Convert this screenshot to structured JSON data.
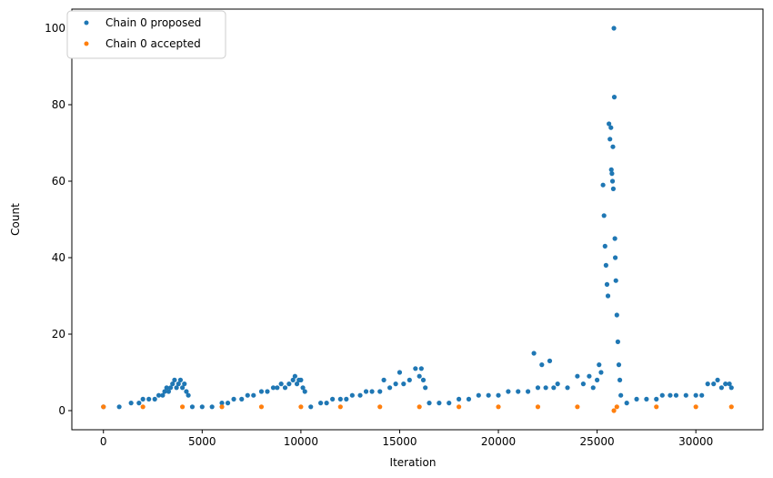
{
  "chart_data": {
    "type": "scatter",
    "title": "",
    "xlabel": "Iteration",
    "ylabel": "Count",
    "xlim": [
      -1600,
      33400
    ],
    "ylim": [
      -5,
      105
    ],
    "xticks": [
      0,
      5000,
      10000,
      15000,
      20000,
      25000,
      30000
    ],
    "xtick_labels": [
      "0",
      "5000",
      "10000",
      "15000",
      "20000",
      "25000",
      "30000"
    ],
    "yticks": [
      0,
      20,
      40,
      60,
      80,
      100
    ],
    "ytick_labels": [
      "0",
      "20",
      "40",
      "60",
      "80",
      "100"
    ],
    "grid": false,
    "legend_position": "upper-left",
    "series": [
      {
        "name": "Chain 0 proposed",
        "color": "#1f77b4",
        "points": [
          [
            0,
            1
          ],
          [
            800,
            1
          ],
          [
            1400,
            2
          ],
          [
            1800,
            2
          ],
          [
            2000,
            3
          ],
          [
            2300,
            3
          ],
          [
            2600,
            3
          ],
          [
            2800,
            4
          ],
          [
            3000,
            4
          ],
          [
            3100,
            5
          ],
          [
            3200,
            6
          ],
          [
            3300,
            5
          ],
          [
            3400,
            6
          ],
          [
            3500,
            7
          ],
          [
            3600,
            8
          ],
          [
            3700,
            6
          ],
          [
            3800,
            7
          ],
          [
            3900,
            8
          ],
          [
            4000,
            6
          ],
          [
            4100,
            7
          ],
          [
            4200,
            5
          ],
          [
            4300,
            4
          ],
          [
            4500,
            1
          ],
          [
            5000,
            1
          ],
          [
            5500,
            1
          ],
          [
            6000,
            2
          ],
          [
            6300,
            2
          ],
          [
            6600,
            3
          ],
          [
            7000,
            3
          ],
          [
            7300,
            4
          ],
          [
            7600,
            4
          ],
          [
            8000,
            5
          ],
          [
            8300,
            5
          ],
          [
            8600,
            6
          ],
          [
            8800,
            6
          ],
          [
            9000,
            7
          ],
          [
            9200,
            6
          ],
          [
            9400,
            7
          ],
          [
            9600,
            8
          ],
          [
            9700,
            9
          ],
          [
            9800,
            7
          ],
          [
            9900,
            8
          ],
          [
            10000,
            8
          ],
          [
            10100,
            6
          ],
          [
            10200,
            5
          ],
          [
            10500,
            1
          ],
          [
            11000,
            2
          ],
          [
            11300,
            2
          ],
          [
            11600,
            3
          ],
          [
            12000,
            3
          ],
          [
            12300,
            3
          ],
          [
            12600,
            4
          ],
          [
            13000,
            4
          ],
          [
            13300,
            5
          ],
          [
            13600,
            5
          ],
          [
            14000,
            5
          ],
          [
            14200,
            8
          ],
          [
            14500,
            6
          ],
          [
            14800,
            7
          ],
          [
            15000,
            10
          ],
          [
            15200,
            7
          ],
          [
            15500,
            8
          ],
          [
            15800,
            11
          ],
          [
            16000,
            9
          ],
          [
            16100,
            11
          ],
          [
            16200,
            8
          ],
          [
            16300,
            6
          ],
          [
            16500,
            2
          ],
          [
            17000,
            2
          ],
          [
            17500,
            2
          ],
          [
            18000,
            3
          ],
          [
            18500,
            3
          ],
          [
            19000,
            4
          ],
          [
            19500,
            4
          ],
          [
            20000,
            4
          ],
          [
            20500,
            5
          ],
          [
            21000,
            5
          ],
          [
            21500,
            5
          ],
          [
            21800,
            15
          ],
          [
            22000,
            6
          ],
          [
            22200,
            12
          ],
          [
            22400,
            6
          ],
          [
            22600,
            13
          ],
          [
            22800,
            6
          ],
          [
            23000,
            7
          ],
          [
            23500,
            6
          ],
          [
            24000,
            9
          ],
          [
            24300,
            7
          ],
          [
            24600,
            9
          ],
          [
            24800,
            6
          ],
          [
            25000,
            8
          ],
          [
            25100,
            12
          ],
          [
            25200,
            10
          ],
          [
            25300,
            59
          ],
          [
            25350,
            51
          ],
          [
            25400,
            43
          ],
          [
            25450,
            38
          ],
          [
            25500,
            33
          ],
          [
            25550,
            30
          ],
          [
            25600,
            75
          ],
          [
            25650,
            71
          ],
          [
            25700,
            74
          ],
          [
            25720,
            63
          ],
          [
            25750,
            62
          ],
          [
            25780,
            60
          ],
          [
            25800,
            69
          ],
          [
            25820,
            58
          ],
          [
            25850,
            100
          ],
          [
            25870,
            82
          ],
          [
            25900,
            45
          ],
          [
            25920,
            40
          ],
          [
            25950,
            34
          ],
          [
            26000,
            25
          ],
          [
            26050,
            18
          ],
          [
            26100,
            12
          ],
          [
            26150,
            8
          ],
          [
            26200,
            4
          ],
          [
            26500,
            2
          ],
          [
            27000,
            3
          ],
          [
            27500,
            3
          ],
          [
            28000,
            3
          ],
          [
            28300,
            4
          ],
          [
            28700,
            4
          ],
          [
            29000,
            4
          ],
          [
            29500,
            4
          ],
          [
            30000,
            4
          ],
          [
            30300,
            4
          ],
          [
            30600,
            7
          ],
          [
            30900,
            7
          ],
          [
            31100,
            8
          ],
          [
            31300,
            6
          ],
          [
            31500,
            7
          ],
          [
            31700,
            7
          ],
          [
            31800,
            6
          ]
        ]
      },
      {
        "name": "Chain 0 accepted",
        "color": "#ff7f0e",
        "points": [
          [
            0,
            1
          ],
          [
            2000,
            1
          ],
          [
            4000,
            1
          ],
          [
            6000,
            1
          ],
          [
            8000,
            1
          ],
          [
            10000,
            1
          ],
          [
            12000,
            1
          ],
          [
            14000,
            1
          ],
          [
            16000,
            1
          ],
          [
            18000,
            1
          ],
          [
            20000,
            1
          ],
          [
            22000,
            1
          ],
          [
            24000,
            1
          ],
          [
            25850,
            0
          ],
          [
            26000,
            1
          ],
          [
            28000,
            1
          ],
          [
            30000,
            1
          ],
          [
            31800,
            1
          ]
        ]
      }
    ]
  }
}
